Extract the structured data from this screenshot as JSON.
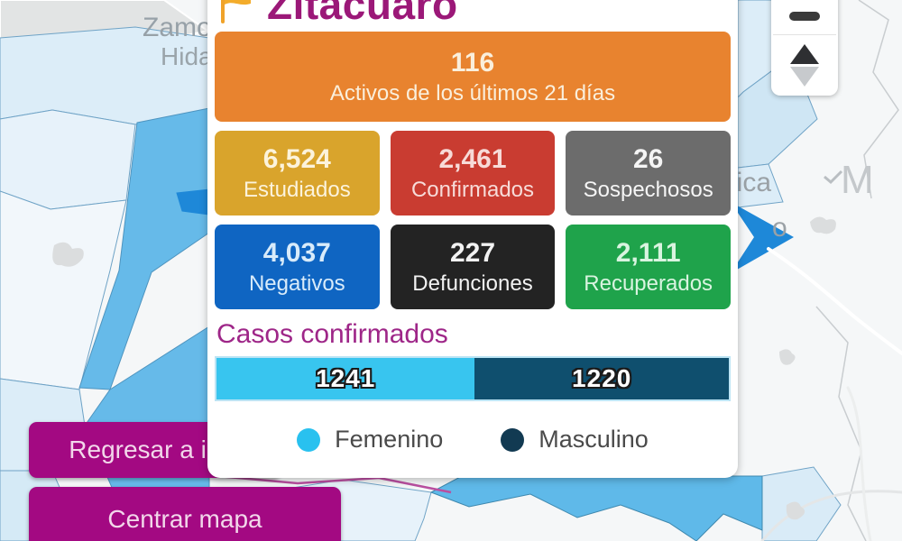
{
  "panel": {
    "title": "Zitácuaro",
    "title_color": "#9B1878",
    "active_card": {
      "value": "116",
      "label": "Activos de los últimos 21 días",
      "color": "#E8832F",
      "text_color": "#FAEFDC"
    },
    "stat_cards": [
      {
        "value": "6,524",
        "label": "Estudiados",
        "color": "#D9A42C",
        "text_color": "#FCF3DC"
      },
      {
        "value": "2,461",
        "label": "Confirmados",
        "color": "#C93C31",
        "text_color": "#F7DBD8"
      },
      {
        "value": "26",
        "label": "Sospechosos",
        "color": "#6C6C6C",
        "text_color": "#F5F5F5"
      },
      {
        "value": "4,037",
        "label": "Negativos",
        "color": "#0F65C2",
        "text_color": "#D8EBFA"
      },
      {
        "value": "227",
        "label": "Defunciones",
        "color": "#232323",
        "text_color": "#F2F2F2"
      },
      {
        "value": "2,111",
        "label": "Recuperados",
        "color": "#1FA34B",
        "text_color": "#D9F4E0"
      }
    ],
    "confirmed": {
      "heading": "Casos confirmados",
      "heading_color": "#9E2688",
      "chart_data": {
        "type": "bar",
        "stacked": true,
        "title": "Casos confirmados",
        "total": 2461,
        "segments": [
          {
            "name": "Femenino",
            "value": 1241,
            "color": "#38C5EF"
          },
          {
            "name": "Masculino",
            "value": 1220,
            "color": "#0F4F6E"
          }
        ],
        "legend_position": "bottom"
      },
      "legend": [
        {
          "label": "Femenino",
          "color": "#29C1EF"
        },
        {
          "label": "Masculino",
          "color": "#123A52"
        }
      ]
    }
  },
  "buttons": {
    "back_label": "Regresar a info",
    "center_label": "Centrar mapa",
    "color": "#A30982"
  },
  "map": {
    "labels": [
      "Zamo",
      "Hida",
      "pica",
      "o",
      "M"
    ]
  }
}
